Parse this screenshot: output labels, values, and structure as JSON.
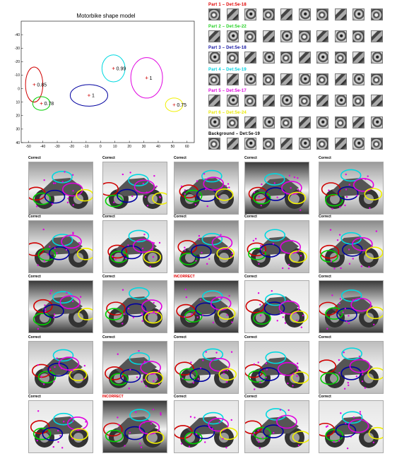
{
  "chart_data": {
    "type": "scatter",
    "title": "Motorbike shape model",
    "xlim": [
      -55,
      65
    ],
    "ylim": [
      -50,
      40
    ],
    "x_ticks": [
      -50,
      -40,
      -30,
      -20,
      -10,
      0,
      10,
      20,
      30,
      40,
      50,
      60
    ],
    "y_ticks": [
      -40,
      -30,
      -20,
      -10,
      0,
      10,
      20,
      30,
      40
    ],
    "y_inverted": true,
    "parts": [
      {
        "name": "Part 1",
        "color": "#d00000",
        "cx": -46,
        "cy": -3,
        "rx": 6,
        "ry": 13,
        "label": "0.85"
      },
      {
        "name": "Part 2",
        "color": "#00d000",
        "cx": -41,
        "cy": 11,
        "rx": 6,
        "ry": 5,
        "label": "0.78"
      },
      {
        "name": "Part 3",
        "color": "#0000a0",
        "cx": -8,
        "cy": 5,
        "rx": 13,
        "ry": 8,
        "label": "1"
      },
      {
        "name": "Part 4",
        "color": "#00d8e0",
        "cx": 9,
        "cy": -15,
        "rx": 8,
        "ry": 10,
        "label": "0.99"
      },
      {
        "name": "Part 5",
        "color": "#e000e0",
        "cx": 32,
        "cy": -8,
        "rx": 11,
        "ry": 15,
        "label": "1"
      },
      {
        "name": "Part 6",
        "color": "#f0f000",
        "cx": 51,
        "cy": 12,
        "rx": 6,
        "ry": 5,
        "label": "0.75"
      }
    ]
  },
  "part_labels": [
    {
      "text": "Part 1 – Det:5e-18",
      "color": "#e00000"
    },
    {
      "text": "Part 2 – Det:5e-22",
      "color": "#20d020"
    },
    {
      "text": "Part 3 – Det:5e-18",
      "color": "#1010a0"
    },
    {
      "text": "Part 4 – Det:5e-19",
      "color": "#00d0e0"
    },
    {
      "text": "Part 5 – Det:5e-17",
      "color": "#e000e0"
    },
    {
      "text": "Part 6 – Det:5e-24",
      "color": "#e8e800"
    },
    {
      "text": "Background – Det:5e-19",
      "color": "#000000"
    }
  ],
  "grid_labels": [
    [
      "Correct",
      "Correct",
      "Correct",
      "Correct",
      "Correct"
    ],
    [
      "Correct",
      "Correct",
      "Correct",
      "Correct",
      "Correct"
    ],
    [
      "Correct",
      "Correct",
      "INCORRECT",
      "Correct",
      "Correct"
    ],
    [
      "Correct",
      "Correct",
      "Correct",
      "Correct",
      "Correct"
    ],
    [
      "Correct",
      "INCORRECT",
      "Correct",
      "Correct",
      "Correct"
    ]
  ],
  "colors": {
    "correct": "#000000",
    "incorrect": "#e00000"
  }
}
